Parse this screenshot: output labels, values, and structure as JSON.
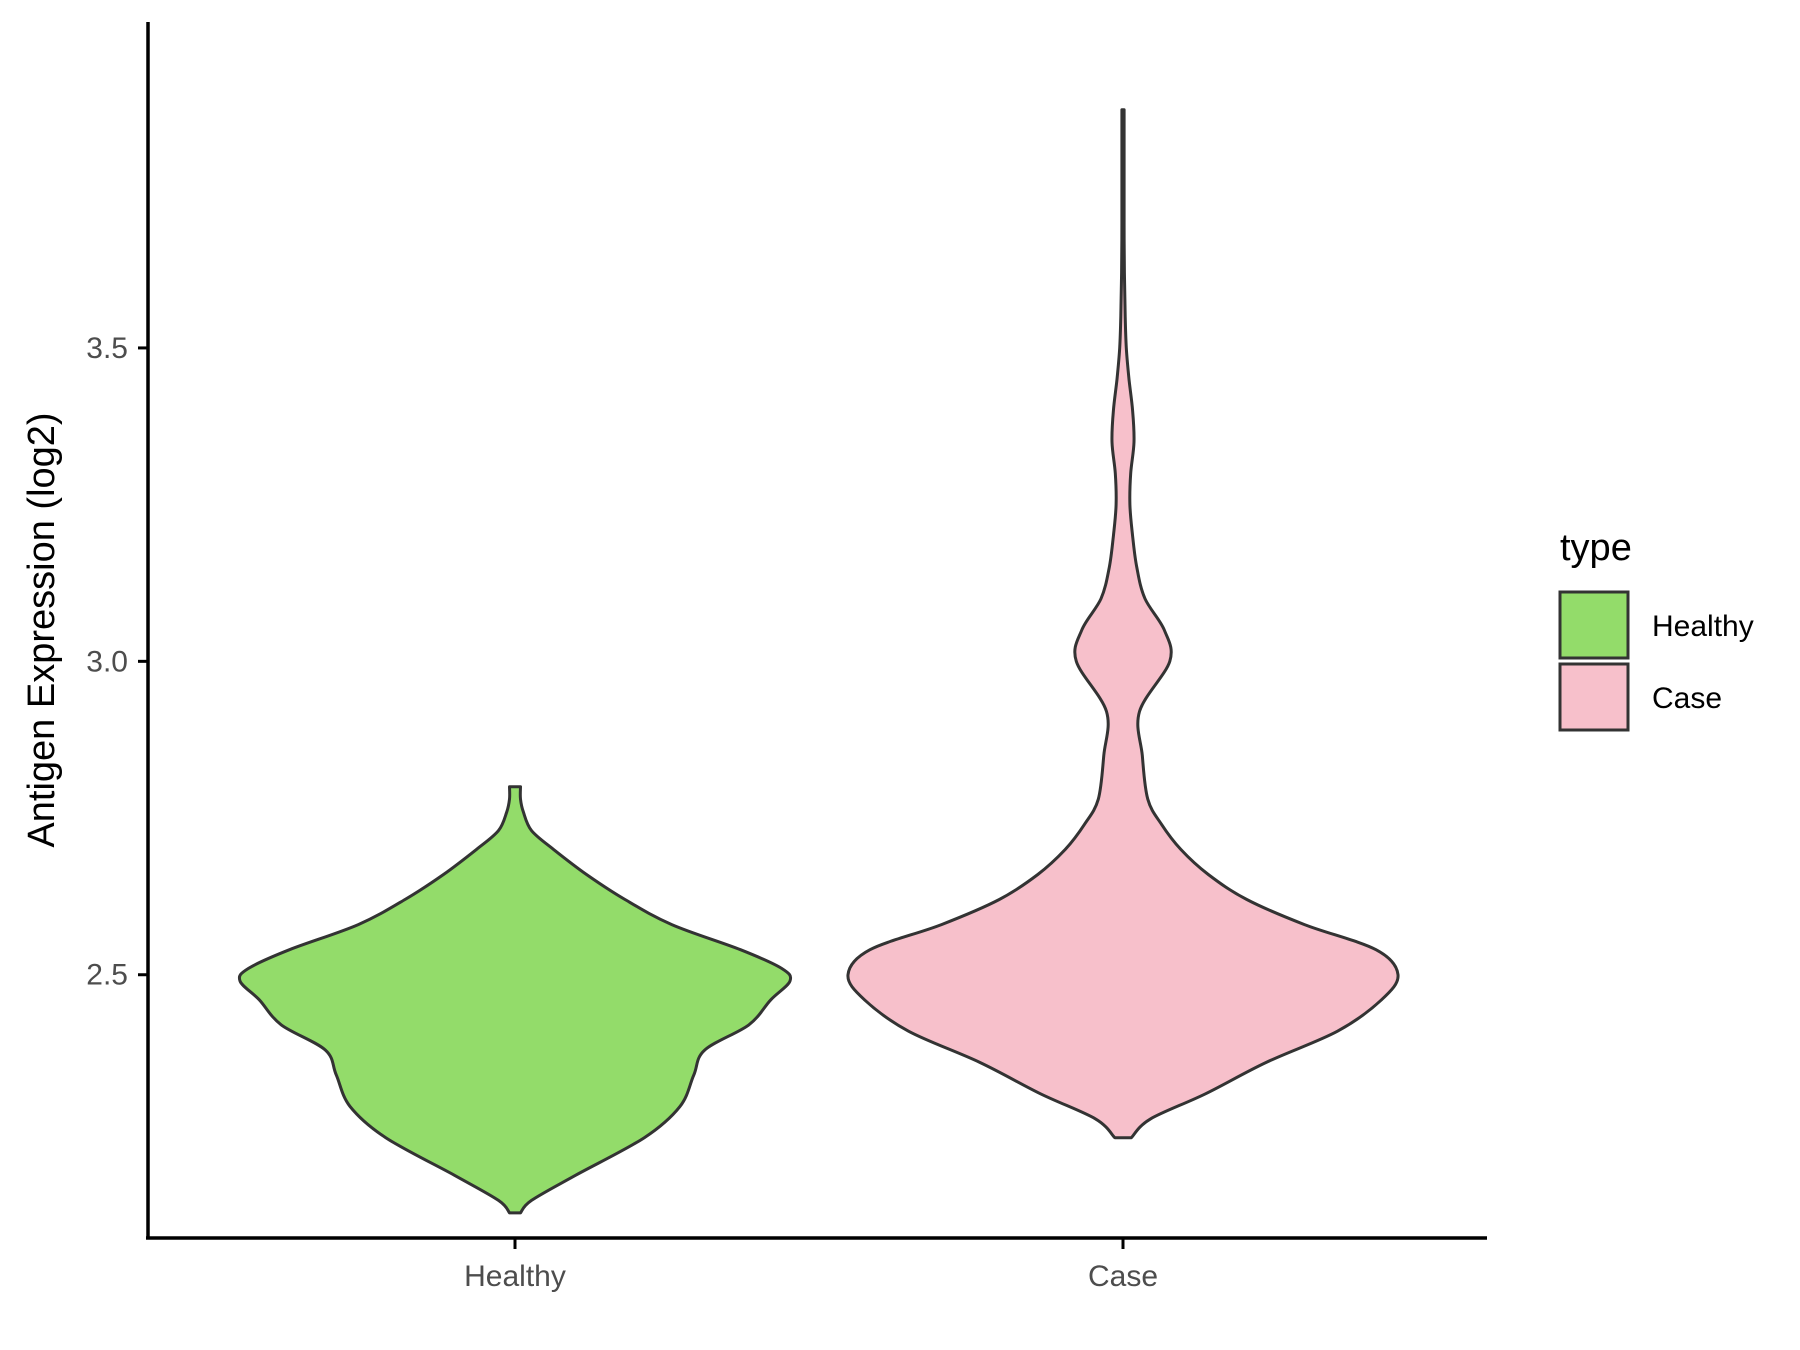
{
  "chart_data": {
    "type": "violin",
    "title": "",
    "xlabel": "",
    "ylabel": "Antigen Expression (log2)",
    "categories": [
      "Healthy",
      "Case"
    ],
    "yticks": [
      "2.5",
      "3.0",
      "3.5"
    ],
    "ylim": [
      2.08,
      4.02
    ],
    "legend": {
      "title": "type",
      "position": "right",
      "entries": [
        "Healthy",
        "Case"
      ]
    },
    "colors": {
      "Healthy": "#93dc6a",
      "Case": "#f7c0cb",
      "outline": "#333333"
    },
    "series": [
      {
        "name": "Healthy",
        "min": 2.12,
        "max": 2.8,
        "density": [
          [
            2.12,
            0.02
          ],
          [
            2.14,
            0.06
          ],
          [
            2.18,
            0.22
          ],
          [
            2.24,
            0.47
          ],
          [
            2.29,
            0.6
          ],
          [
            2.34,
            0.65
          ],
          [
            2.38,
            0.69
          ],
          [
            2.42,
            0.85
          ],
          [
            2.46,
            0.93
          ],
          [
            2.49,
            1.0
          ],
          [
            2.51,
            0.97
          ],
          [
            2.54,
            0.82
          ],
          [
            2.58,
            0.57
          ],
          [
            2.62,
            0.4
          ],
          [
            2.66,
            0.26
          ],
          [
            2.7,
            0.14
          ],
          [
            2.73,
            0.06
          ],
          [
            2.76,
            0.03
          ],
          [
            2.78,
            0.02
          ],
          [
            2.8,
            0.02
          ]
        ]
      },
      {
        "name": "Case",
        "min": 2.24,
        "max": 3.88,
        "density": [
          [
            2.24,
            0.03
          ],
          [
            2.27,
            0.1
          ],
          [
            2.31,
            0.3
          ],
          [
            2.36,
            0.52
          ],
          [
            2.41,
            0.78
          ],
          [
            2.46,
            0.94
          ],
          [
            2.5,
            1.0
          ],
          [
            2.54,
            0.92
          ],
          [
            2.58,
            0.66
          ],
          [
            2.62,
            0.45
          ],
          [
            2.66,
            0.31
          ],
          [
            2.7,
            0.21
          ],
          [
            2.74,
            0.14
          ],
          [
            2.78,
            0.09
          ],
          [
            2.85,
            0.07
          ],
          [
            2.92,
            0.06
          ],
          [
            3.0,
            0.17
          ],
          [
            3.05,
            0.15
          ],
          [
            3.1,
            0.08
          ],
          [
            3.15,
            0.05
          ],
          [
            3.2,
            0.035
          ],
          [
            3.25,
            0.025
          ],
          [
            3.3,
            0.028
          ],
          [
            3.35,
            0.04
          ],
          [
            3.4,
            0.035
          ],
          [
            3.45,
            0.022
          ],
          [
            3.5,
            0.012
          ],
          [
            3.55,
            0.008
          ],
          [
            3.62,
            0.005
          ],
          [
            3.7,
            0.004
          ],
          [
            3.78,
            0.004
          ],
          [
            3.85,
            0.004
          ],
          [
            3.88,
            0.004
          ]
        ]
      }
    ]
  }
}
